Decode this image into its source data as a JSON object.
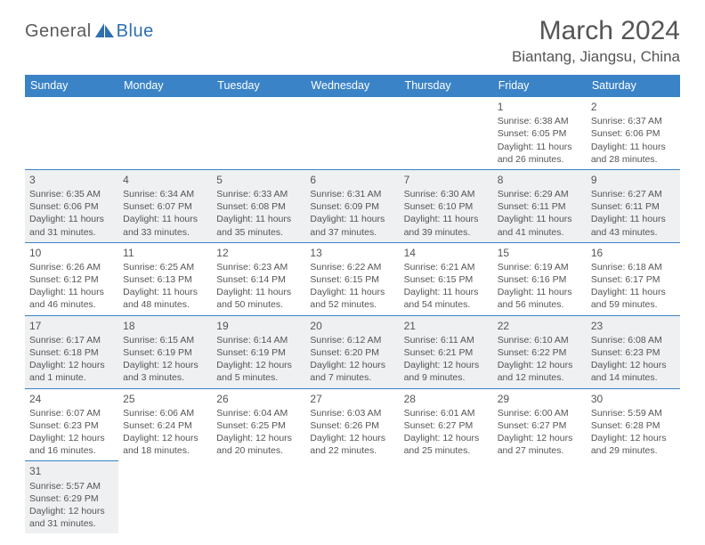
{
  "logo": {
    "general": "General",
    "blue": "Blue"
  },
  "header": {
    "monthTitle": "March 2024",
    "location": "Biantang, Jiangsu, China"
  },
  "colors": {
    "headerBg": "#3b83c7",
    "altRow": "#eef0f2",
    "text": "#555555"
  },
  "dayNames": [
    "Sunday",
    "Monday",
    "Tuesday",
    "Wednesday",
    "Thursday",
    "Friday",
    "Saturday"
  ],
  "weeks": [
    [
      null,
      null,
      null,
      null,
      null,
      {
        "n": "1",
        "sunrise": "Sunrise: 6:38 AM",
        "sunset": "Sunset: 6:05 PM",
        "daylight": "Daylight: 11 hours and 26 minutes."
      },
      {
        "n": "2",
        "sunrise": "Sunrise: 6:37 AM",
        "sunset": "Sunset: 6:06 PM",
        "daylight": "Daylight: 11 hours and 28 minutes."
      }
    ],
    [
      {
        "n": "3",
        "sunrise": "Sunrise: 6:35 AM",
        "sunset": "Sunset: 6:06 PM",
        "daylight": "Daylight: 11 hours and 31 minutes."
      },
      {
        "n": "4",
        "sunrise": "Sunrise: 6:34 AM",
        "sunset": "Sunset: 6:07 PM",
        "daylight": "Daylight: 11 hours and 33 minutes."
      },
      {
        "n": "5",
        "sunrise": "Sunrise: 6:33 AM",
        "sunset": "Sunset: 6:08 PM",
        "daylight": "Daylight: 11 hours and 35 minutes."
      },
      {
        "n": "6",
        "sunrise": "Sunrise: 6:31 AM",
        "sunset": "Sunset: 6:09 PM",
        "daylight": "Daylight: 11 hours and 37 minutes."
      },
      {
        "n": "7",
        "sunrise": "Sunrise: 6:30 AM",
        "sunset": "Sunset: 6:10 PM",
        "daylight": "Daylight: 11 hours and 39 minutes."
      },
      {
        "n": "8",
        "sunrise": "Sunrise: 6:29 AM",
        "sunset": "Sunset: 6:11 PM",
        "daylight": "Daylight: 11 hours and 41 minutes."
      },
      {
        "n": "9",
        "sunrise": "Sunrise: 6:27 AM",
        "sunset": "Sunset: 6:11 PM",
        "daylight": "Daylight: 11 hours and 43 minutes."
      }
    ],
    [
      {
        "n": "10",
        "sunrise": "Sunrise: 6:26 AM",
        "sunset": "Sunset: 6:12 PM",
        "daylight": "Daylight: 11 hours and 46 minutes."
      },
      {
        "n": "11",
        "sunrise": "Sunrise: 6:25 AM",
        "sunset": "Sunset: 6:13 PM",
        "daylight": "Daylight: 11 hours and 48 minutes."
      },
      {
        "n": "12",
        "sunrise": "Sunrise: 6:23 AM",
        "sunset": "Sunset: 6:14 PM",
        "daylight": "Daylight: 11 hours and 50 minutes."
      },
      {
        "n": "13",
        "sunrise": "Sunrise: 6:22 AM",
        "sunset": "Sunset: 6:15 PM",
        "daylight": "Daylight: 11 hours and 52 minutes."
      },
      {
        "n": "14",
        "sunrise": "Sunrise: 6:21 AM",
        "sunset": "Sunset: 6:15 PM",
        "daylight": "Daylight: 11 hours and 54 minutes."
      },
      {
        "n": "15",
        "sunrise": "Sunrise: 6:19 AM",
        "sunset": "Sunset: 6:16 PM",
        "daylight": "Daylight: 11 hours and 56 minutes."
      },
      {
        "n": "16",
        "sunrise": "Sunrise: 6:18 AM",
        "sunset": "Sunset: 6:17 PM",
        "daylight": "Daylight: 11 hours and 59 minutes."
      }
    ],
    [
      {
        "n": "17",
        "sunrise": "Sunrise: 6:17 AM",
        "sunset": "Sunset: 6:18 PM",
        "daylight": "Daylight: 12 hours and 1 minute."
      },
      {
        "n": "18",
        "sunrise": "Sunrise: 6:15 AM",
        "sunset": "Sunset: 6:19 PM",
        "daylight": "Daylight: 12 hours and 3 minutes."
      },
      {
        "n": "19",
        "sunrise": "Sunrise: 6:14 AM",
        "sunset": "Sunset: 6:19 PM",
        "daylight": "Daylight: 12 hours and 5 minutes."
      },
      {
        "n": "20",
        "sunrise": "Sunrise: 6:12 AM",
        "sunset": "Sunset: 6:20 PM",
        "daylight": "Daylight: 12 hours and 7 minutes."
      },
      {
        "n": "21",
        "sunrise": "Sunrise: 6:11 AM",
        "sunset": "Sunset: 6:21 PM",
        "daylight": "Daylight: 12 hours and 9 minutes."
      },
      {
        "n": "22",
        "sunrise": "Sunrise: 6:10 AM",
        "sunset": "Sunset: 6:22 PM",
        "daylight": "Daylight: 12 hours and 12 minutes."
      },
      {
        "n": "23",
        "sunrise": "Sunrise: 6:08 AM",
        "sunset": "Sunset: 6:23 PM",
        "daylight": "Daylight: 12 hours and 14 minutes."
      }
    ],
    [
      {
        "n": "24",
        "sunrise": "Sunrise: 6:07 AM",
        "sunset": "Sunset: 6:23 PM",
        "daylight": "Daylight: 12 hours and 16 minutes."
      },
      {
        "n": "25",
        "sunrise": "Sunrise: 6:06 AM",
        "sunset": "Sunset: 6:24 PM",
        "daylight": "Daylight: 12 hours and 18 minutes."
      },
      {
        "n": "26",
        "sunrise": "Sunrise: 6:04 AM",
        "sunset": "Sunset: 6:25 PM",
        "daylight": "Daylight: 12 hours and 20 minutes."
      },
      {
        "n": "27",
        "sunrise": "Sunrise: 6:03 AM",
        "sunset": "Sunset: 6:26 PM",
        "daylight": "Daylight: 12 hours and 22 minutes."
      },
      {
        "n": "28",
        "sunrise": "Sunrise: 6:01 AM",
        "sunset": "Sunset: 6:27 PM",
        "daylight": "Daylight: 12 hours and 25 minutes."
      },
      {
        "n": "29",
        "sunrise": "Sunrise: 6:00 AM",
        "sunset": "Sunset: 6:27 PM",
        "daylight": "Daylight: 12 hours and 27 minutes."
      },
      {
        "n": "30",
        "sunrise": "Sunrise: 5:59 AM",
        "sunset": "Sunset: 6:28 PM",
        "daylight": "Daylight: 12 hours and 29 minutes."
      }
    ],
    [
      {
        "n": "31",
        "sunrise": "Sunrise: 5:57 AM",
        "sunset": "Sunset: 6:29 PM",
        "daylight": "Daylight: 12 hours and 31 minutes."
      },
      null,
      null,
      null,
      null,
      null,
      null
    ]
  ]
}
